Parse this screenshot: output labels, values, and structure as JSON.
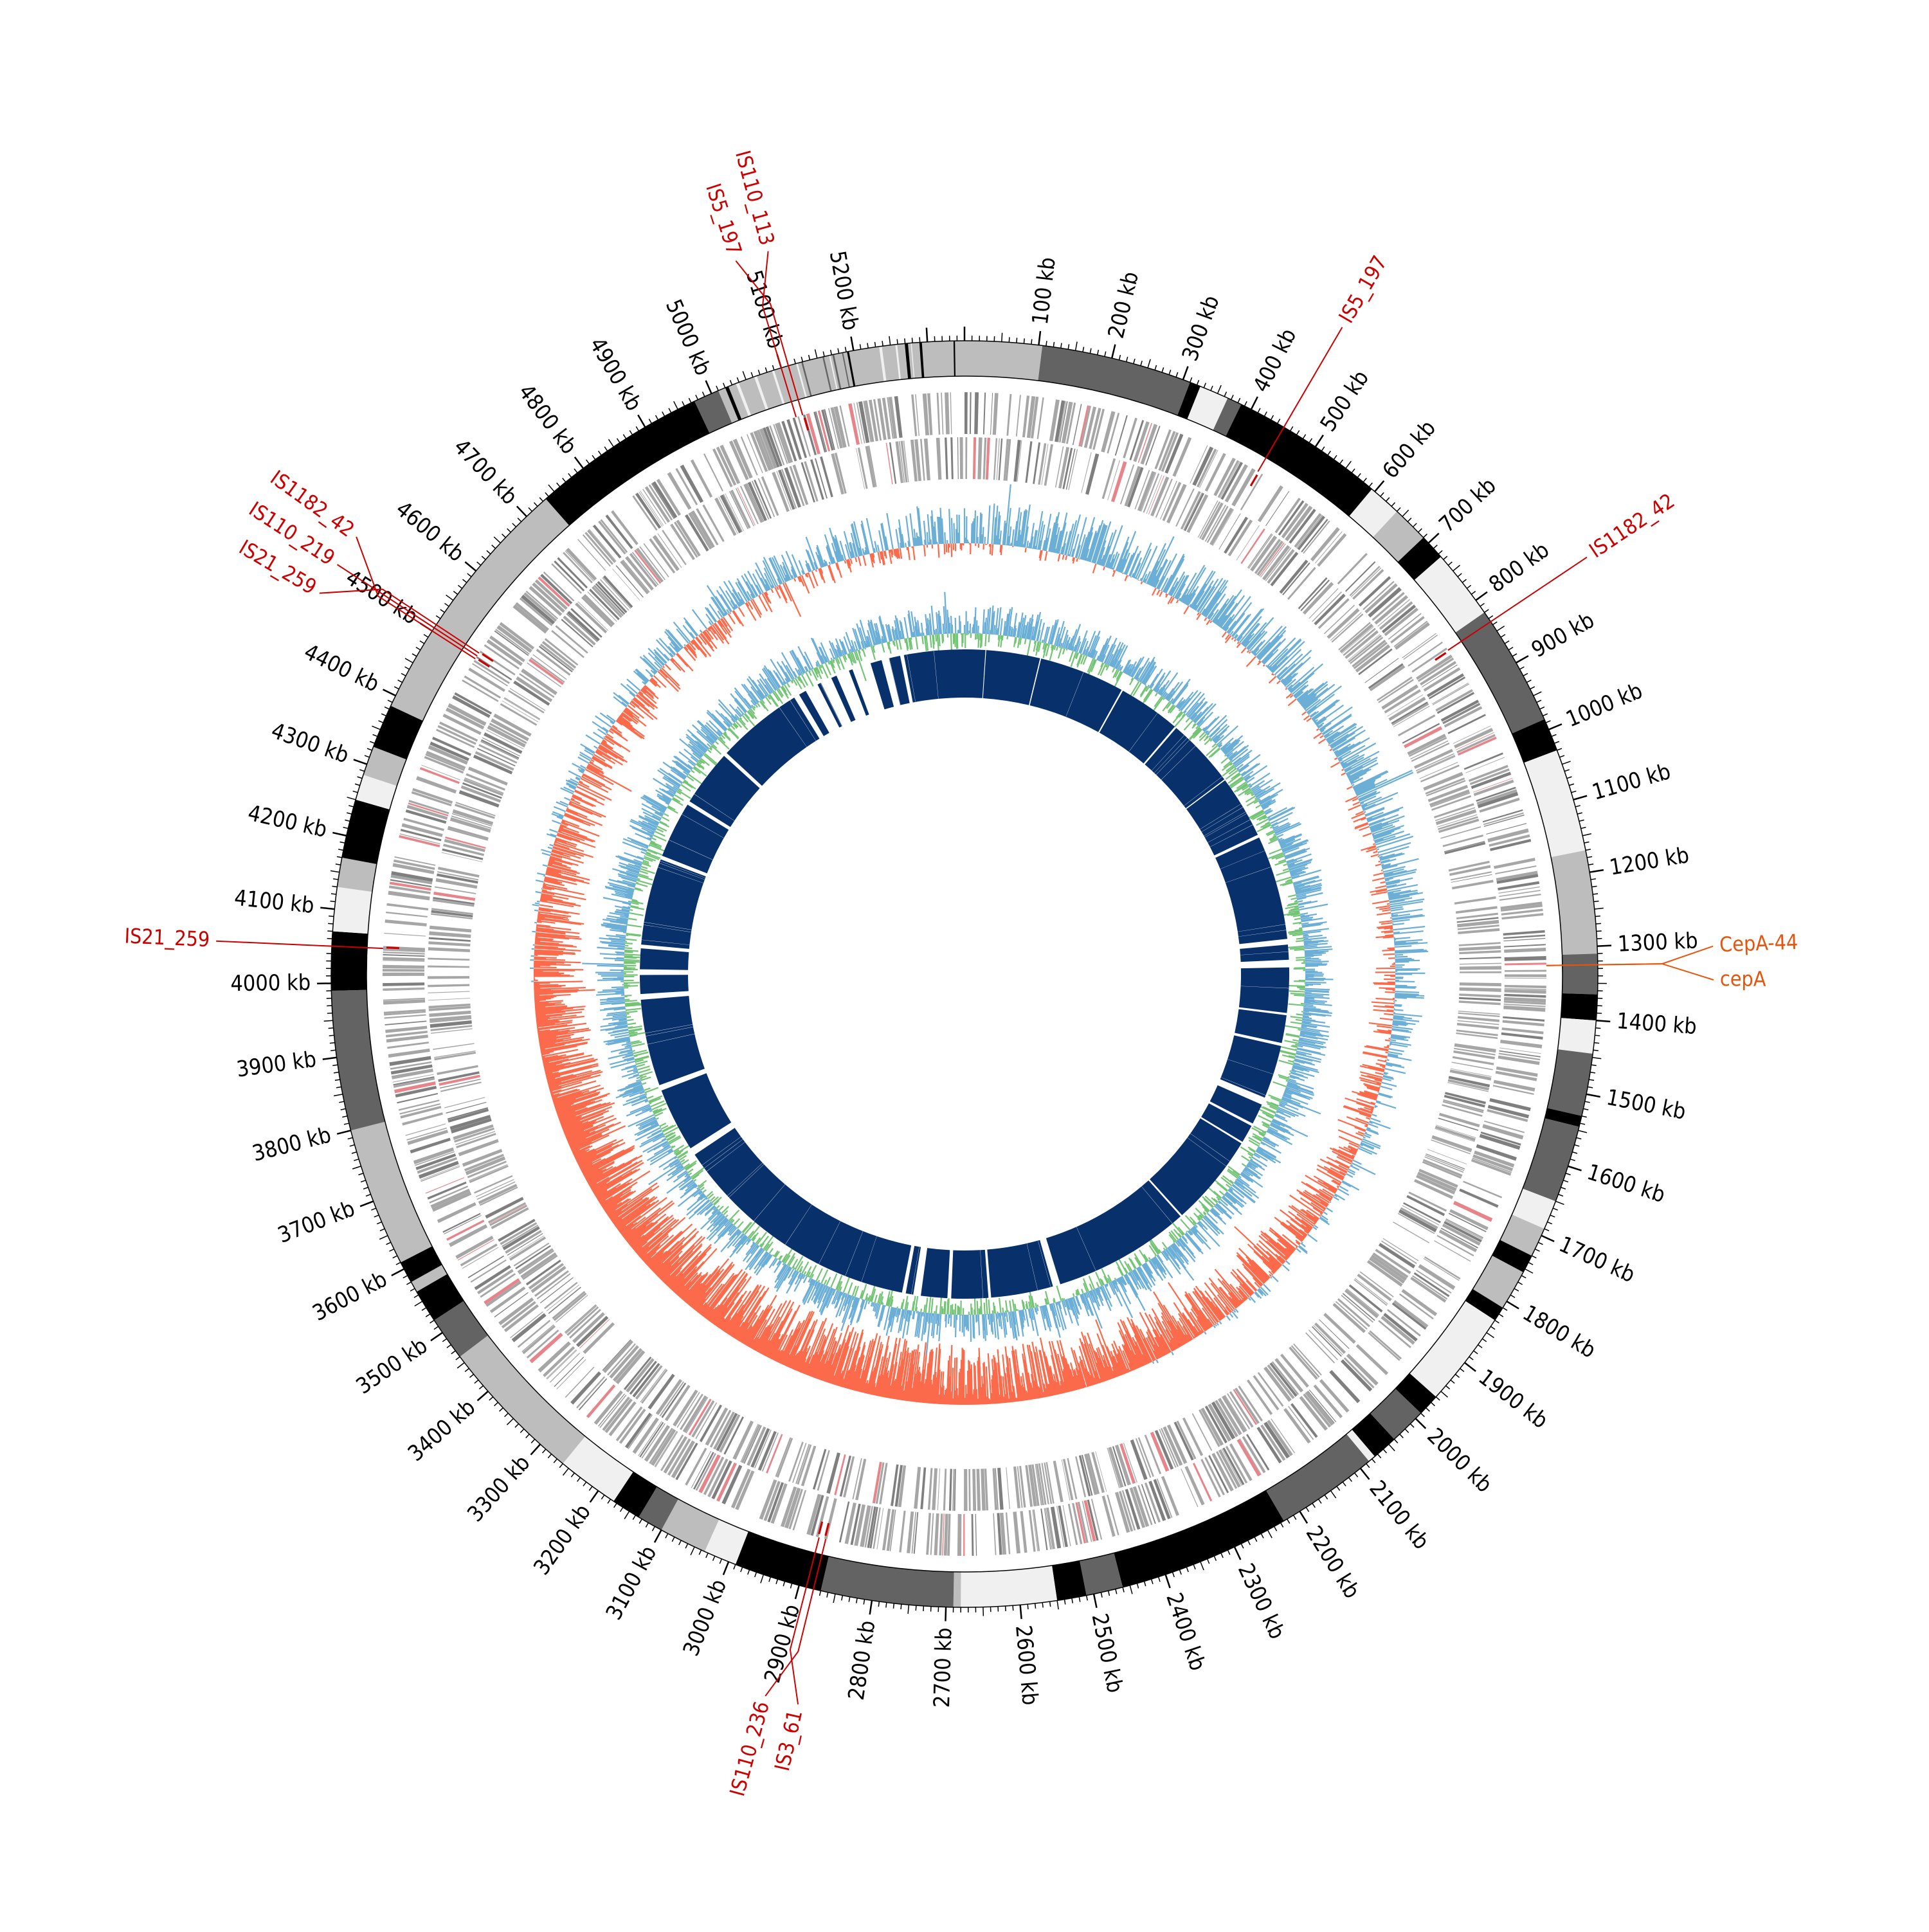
{
  "genome": {
    "length_kb": 5350,
    "tick_unit": "kb",
    "tick_labels": [
      "100 kb",
      "200 kb",
      "300 kb",
      "400 kb",
      "500 kb",
      "600 kb",
      "700 kb",
      "800 kb",
      "900 kb",
      "1000 kb",
      "1100 kb",
      "1200 kb",
      "1300 kb",
      "1400 kb",
      "1500 kb",
      "1600 kb",
      "1700 kb",
      "1800 kb",
      "1900 kb",
      "2000 kb",
      "2100 kb",
      "2200 kb",
      "2300 kb",
      "2400 kb",
      "2500 kb",
      "2600 kb",
      "2700 kb",
      "2800 kb",
      "2900 kb",
      "3000 kb",
      "3100 kb",
      "3200 kb",
      "3300 kb",
      "3400 kb",
      "3500 kb",
      "3600 kb",
      "3700 kb",
      "3800 kb",
      "3900 kb",
      "4000 kb",
      "4100 kb",
      "4200 kb",
      "4300 kb",
      "4400 kb",
      "4500 kb",
      "4600 kb",
      "4700 kb",
      "4800 kb",
      "4900 kb",
      "5000 kb",
      "5100 kb",
      "5200 kb"
    ]
  },
  "contig_segments": [
    {
      "start": 0,
      "end": 105,
      "color": "#bdbdbd"
    },
    {
      "start": 105,
      "end": 310,
      "color": "#636363"
    },
    {
      "start": 310,
      "end": 325,
      "color": "#000000"
    },
    {
      "start": 325,
      "end": 365,
      "color": "#f0f0f0"
    },
    {
      "start": 365,
      "end": 385,
      "color": "#636363"
    },
    {
      "start": 385,
      "end": 595,
      "color": "#000000"
    },
    {
      "start": 595,
      "end": 640,
      "color": "#f0f0f0"
    },
    {
      "start": 640,
      "end": 690,
      "color": "#bdbdbd"
    },
    {
      "start": 690,
      "end": 725,
      "color": "#000000"
    },
    {
      "start": 725,
      "end": 820,
      "color": "#f0f0f0"
    },
    {
      "start": 820,
      "end": 985,
      "color": "#636363"
    },
    {
      "start": 985,
      "end": 1030,
      "color": "#000000"
    },
    {
      "start": 1030,
      "end": 1170,
      "color": "#f0f0f0"
    },
    {
      "start": 1170,
      "end": 1310,
      "color": "#bdbdbd"
    },
    {
      "start": 1310,
      "end": 1365,
      "color": "#636363"
    },
    {
      "start": 1365,
      "end": 1400,
      "color": "#000000"
    },
    {
      "start": 1400,
      "end": 1445,
      "color": "#f0f0f0"
    },
    {
      "start": 1445,
      "end": 1530,
      "color": "#636363"
    },
    {
      "start": 1530,
      "end": 1545,
      "color": "#000000"
    },
    {
      "start": 1545,
      "end": 1650,
      "color": "#636363"
    },
    {
      "start": 1650,
      "end": 1690,
      "color": "#f0f0f0"
    },
    {
      "start": 1690,
      "end": 1730,
      "color": "#bdbdbd"
    },
    {
      "start": 1730,
      "end": 1755,
      "color": "#000000"
    },
    {
      "start": 1755,
      "end": 1810,
      "color": "#bdbdbd"
    },
    {
      "start": 1810,
      "end": 1830,
      "color": "#000000"
    },
    {
      "start": 1830,
      "end": 1960,
      "color": "#f0f0f0"
    },
    {
      "start": 1960,
      "end": 1990,
      "color": "#000000"
    },
    {
      "start": 1990,
      "end": 2040,
      "color": "#636363"
    },
    {
      "start": 2040,
      "end": 2075,
      "color": "#000000"
    },
    {
      "start": 2075,
      "end": 2085,
      "color": "#f0f0f0"
    },
    {
      "start": 2085,
      "end": 2225,
      "color": "#636363"
    },
    {
      "start": 2225,
      "end": 2460,
      "color": "#000000"
    },
    {
      "start": 2460,
      "end": 2510,
      "color": "#636363"
    },
    {
      "start": 2510,
      "end": 2550,
      "color": "#000000"
    },
    {
      "start": 2550,
      "end": 2680,
      "color": "#f0f0f0"
    },
    {
      "start": 2680,
      "end": 2690,
      "color": "#bdbdbd"
    },
    {
      "start": 2690,
      "end": 2870,
      "color": "#636363"
    },
    {
      "start": 2870,
      "end": 2990,
      "color": "#000000"
    },
    {
      "start": 2990,
      "end": 3035,
      "color": "#f0f0f0"
    },
    {
      "start": 3035,
      "end": 3100,
      "color": "#bdbdbd"
    },
    {
      "start": 3100,
      "end": 3135,
      "color": "#636363"
    },
    {
      "start": 3135,
      "end": 3175,
      "color": "#000000"
    },
    {
      "start": 3175,
      "end": 3260,
      "color": "#f0f0f0"
    },
    {
      "start": 3260,
      "end": 3460,
      "color": "#bdbdbd"
    },
    {
      "start": 3460,
      "end": 3520,
      "color": "#636363"
    },
    {
      "start": 3520,
      "end": 3565,
      "color": "#000000"
    },
    {
      "start": 3565,
      "end": 3580,
      "color": "#bdbdbd"
    },
    {
      "start": 3580,
      "end": 3610,
      "color": "#000000"
    },
    {
      "start": 3610,
      "end": 3800,
      "color": "#bdbdbd"
    },
    {
      "start": 3800,
      "end": 3990,
      "color": "#636363"
    },
    {
      "start": 3990,
      "end": 4070,
      "color": "#000000"
    },
    {
      "start": 4070,
      "end": 4130,
      "color": "#f0f0f0"
    },
    {
      "start": 4130,
      "end": 4170,
      "color": "#bdbdbd"
    },
    {
      "start": 4170,
      "end": 4250,
      "color": "#000000"
    },
    {
      "start": 4250,
      "end": 4285,
      "color": "#f0f0f0"
    },
    {
      "start": 4285,
      "end": 4325,
      "color": "#bdbdbd"
    },
    {
      "start": 4325,
      "end": 4385,
      "color": "#000000"
    },
    {
      "start": 4385,
      "end": 4735,
      "color": "#bdbdbd"
    },
    {
      "start": 4735,
      "end": 4975,
      "color": "#000000"
    },
    {
      "start": 4975,
      "end": 5010,
      "color": "#636363"
    },
    {
      "start": 5010,
      "end": 5350,
      "color": "#bdbdbd"
    }
  ],
  "gc_track": {
    "positive_color": "#6baed6",
    "negative_color": "#fb6a4a"
  },
  "skew_track": {
    "positive_color": "#6baed6",
    "negative_color": "#74c476"
  },
  "blast_track": {
    "color": "#08306b",
    "blocks": [
      {
        "start": 0,
        "end": 55
      },
      {
        "start": 57,
        "end": 200
      },
      {
        "start": 203,
        "end": 430
      },
      {
        "start": 434,
        "end": 600
      },
      {
        "start": 605,
        "end": 790
      },
      {
        "start": 793,
        "end": 960
      },
      {
        "start": 968,
        "end": 1245
      },
      {
        "start": 1260,
        "end": 1300
      },
      {
        "start": 1320,
        "end": 1440
      },
      {
        "start": 1446,
        "end": 1520
      },
      {
        "start": 1528,
        "end": 1670
      },
      {
        "start": 1690,
        "end": 1745
      },
      {
        "start": 1752,
        "end": 1800
      },
      {
        "start": 1805,
        "end": 2050
      },
      {
        "start": 2055,
        "end": 2420
      },
      {
        "start": 2440,
        "end": 2605
      },
      {
        "start": 2612,
        "end": 2710
      },
      {
        "start": 2720,
        "end": 2790
      },
      {
        "start": 2810,
        "end": 2830
      },
      {
        "start": 2840,
        "end": 3510
      },
      {
        "start": 3530,
        "end": 3700
      },
      {
        "start": 3715,
        "end": 3945
      },
      {
        "start": 3960,
        "end": 4010
      },
      {
        "start": 4025,
        "end": 4080
      },
      {
        "start": 4090,
        "end": 4320
      },
      {
        "start": 4330,
        "end": 4480
      },
      {
        "start": 4490,
        "end": 4640
      },
      {
        "start": 4650,
        "end": 4880
      },
      {
        "start": 4895,
        "end": 4915
      },
      {
        "start": 4950,
        "end": 4960
      },
      {
        "start": 4990,
        "end": 5005
      },
      {
        "start": 5040,
        "end": 5050
      },
      {
        "start": 5100,
        "end": 5130
      },
      {
        "start": 5150,
        "end": 5180
      },
      {
        "start": 5190,
        "end": 5350
      }
    ]
  },
  "features": [
    {
      "label": "IS5_197",
      "position": 5110,
      "color": "#cc0000"
    },
    {
      "label": "IS110_113",
      "position": 5100,
      "color": "#cc0000"
    },
    {
      "label": "IS5_197",
      "position": 450,
      "color": "#cc0000"
    },
    {
      "label": "IS1182_42",
      "position": 835,
      "color": "#cc0000"
    },
    {
      "label": "CepA-44",
      "position": 1325,
      "color": "#e6550d"
    },
    {
      "label": "cepA",
      "position": 1325,
      "color": "#e6550d"
    },
    {
      "label": "IS3_61",
      "position": 2890,
      "color": "#cc0000"
    },
    {
      "label": "IS110_236",
      "position": 2880,
      "color": "#cc0000"
    },
    {
      "label": "IS21_259",
      "position": 4050,
      "color": "#cc0000"
    },
    {
      "label": "IS21_259",
      "position": 4510,
      "color": "#cc0000"
    },
    {
      "label": "IS110_219",
      "position": 4505,
      "color": "#cc0000"
    },
    {
      "label": "IS1182_42",
      "position": 4500,
      "color": "#cc0000"
    }
  ]
}
